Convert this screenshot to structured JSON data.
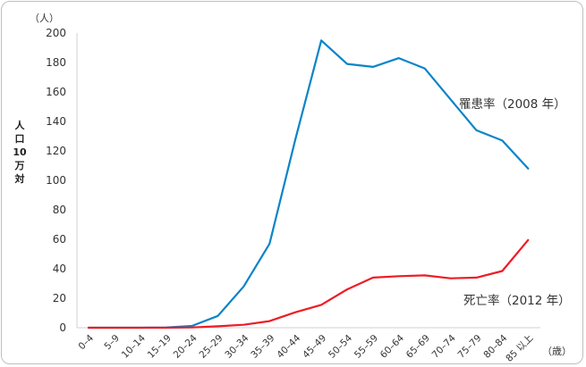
{
  "chart_data": {
    "type": "line",
    "title": "",
    "y_unit": "（人）",
    "x_unit": "（歳）",
    "ylabel_chars": [
      "人",
      "口",
      "10",
      "万",
      "対"
    ],
    "ylim": [
      0,
      200
    ],
    "yticks": [
      0,
      20,
      40,
      60,
      80,
      100,
      120,
      140,
      160,
      180,
      200
    ],
    "grid": false,
    "categories": [
      "0–4",
      "5–9",
      "10–14",
      "15–19",
      "20–24",
      "25–29",
      "30–34",
      "35–39",
      "40–44",
      "45–49",
      "50–54",
      "55–59",
      "60–64",
      "65–69",
      "70–74",
      "75–79",
      "80–84",
      "85 以上"
    ],
    "series": [
      {
        "name": "罹患率（2008 年）",
        "color": "#0a84c8",
        "values": [
          0,
          0,
          0,
          0.2,
          1.2,
          8,
          28,
          57,
          128,
          195,
          179,
          177,
          183,
          176,
          155,
          134,
          127,
          108
        ]
      },
      {
        "name": "死亡率（2012 年）",
        "color": "#ee1c25",
        "values": [
          0,
          0,
          0,
          0,
          0.2,
          1,
          2,
          4.5,
          10.5,
          15.5,
          26,
          34,
          35,
          35.5,
          33.5,
          34,
          38.5,
          59.5
        ]
      }
    ]
  }
}
